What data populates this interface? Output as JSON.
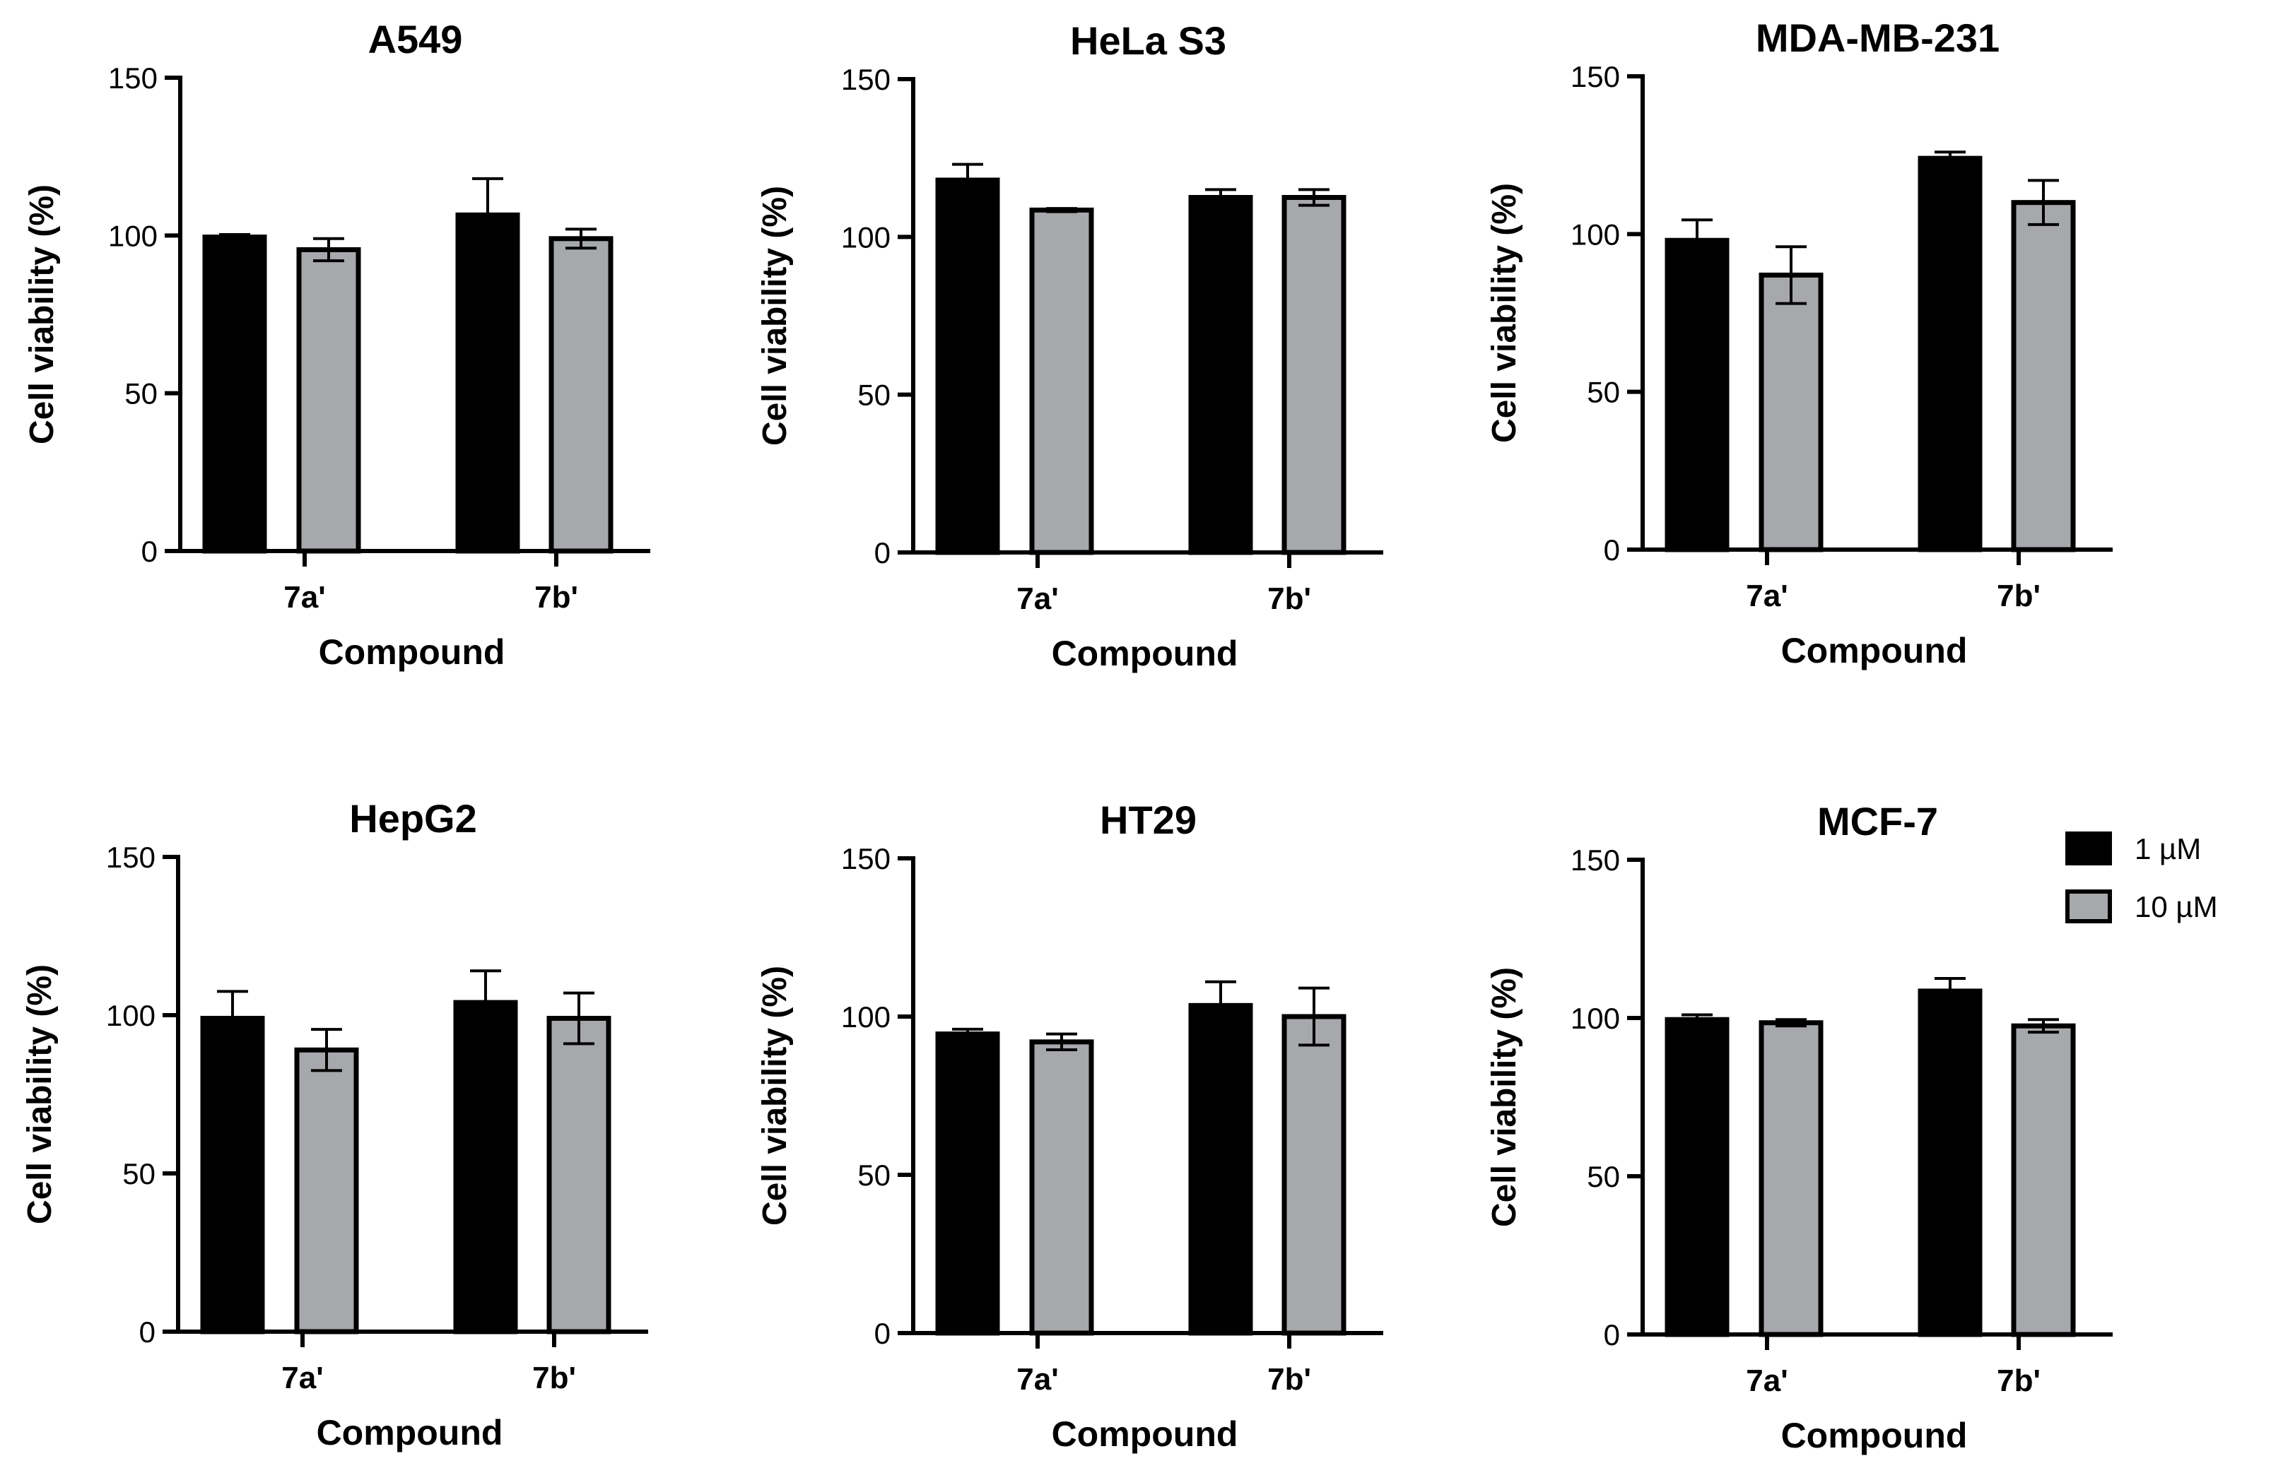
{
  "chart_data": [
    {
      "type": "bar",
      "title": "A549",
      "categories": [
        "7a'",
        "7b'"
      ],
      "xlabel": "Compound",
      "ylabel": "Cell viability (%)",
      "ylim": [
        0,
        150
      ],
      "yticks": [
        0,
        50,
        100,
        150
      ],
      "series": [
        {
          "name": "1 µM",
          "values": [
            99.5,
            106.5
          ],
          "errors": [
            0.8,
            11.5
          ]
        },
        {
          "name": "10 µM",
          "values": [
            95.5,
            99
          ],
          "errors": [
            3.5,
            3
          ]
        }
      ]
    },
    {
      "type": "bar",
      "title": "HeLa S3",
      "categories": [
        "7a'",
        "7b'"
      ],
      "xlabel": "Compound",
      "ylabel": "Cell viability (%)",
      "ylim": [
        0,
        150
      ],
      "yticks": [
        0,
        50,
        100,
        150
      ],
      "series": [
        {
          "name": "1 µM",
          "values": [
            118,
            112.5
          ],
          "errors": [
            5,
            2.5
          ]
        },
        {
          "name": "10 µM",
          "values": [
            108.5,
            112.5
          ],
          "errors": [
            0.5,
            2.5
          ]
        }
      ]
    },
    {
      "type": "bar",
      "title": "MDA-MB-231",
      "categories": [
        "7a'",
        "7b'"
      ],
      "xlabel": "Compound",
      "ylabel": "Cell viability (%)",
      "ylim": [
        0,
        150
      ],
      "yticks": [
        0,
        50,
        100,
        150
      ],
      "series": [
        {
          "name": "1 µM",
          "values": [
            98,
            124
          ],
          "errors": [
            6.5,
            2
          ]
        },
        {
          "name": "10 µM",
          "values": [
            87,
            110
          ],
          "errors": [
            9,
            7
          ]
        }
      ]
    },
    {
      "type": "bar",
      "title": "HepG2",
      "categories": [
        "7a'",
        "7b'"
      ],
      "xlabel": "Compound",
      "ylabel": "Cell viability (%)",
      "ylim": [
        0,
        150
      ],
      "yticks": [
        0,
        50,
        100,
        150
      ],
      "series": [
        {
          "name": "1 µM",
          "values": [
            99,
            104
          ],
          "errors": [
            8.5,
            10
          ]
        },
        {
          "name": "10 µM",
          "values": [
            89,
            99
          ],
          "errors": [
            6.5,
            8
          ]
        }
      ]
    },
    {
      "type": "bar",
      "title": "HT29",
      "categories": [
        "7a'",
        "7b'"
      ],
      "xlabel": "Compound",
      "ylabel": "Cell viability (%)",
      "ylim": [
        0,
        150
      ],
      "yticks": [
        0,
        50,
        100,
        150
      ],
      "series": [
        {
          "name": "1 µM",
          "values": [
            94.5,
            103.5
          ],
          "errors": [
            1.5,
            7.5
          ]
        },
        {
          "name": "10 µM",
          "values": [
            92,
            100
          ],
          "errors": [
            2.5,
            9
          ]
        }
      ]
    },
    {
      "type": "bar",
      "title": "MCF-7",
      "categories": [
        "7a'",
        "7b'"
      ],
      "xlabel": "Compound",
      "ylabel": "Cell viability (%)",
      "ylim": [
        0,
        150
      ],
      "yticks": [
        0,
        50,
        100,
        150
      ],
      "series": [
        {
          "name": "1 µM",
          "values": [
            99.5,
            108.5
          ],
          "errors": [
            1.5,
            4
          ]
        },
        {
          "name": "10 µM",
          "values": [
            98.5,
            97.5
          ],
          "errors": [
            1,
            2
          ]
        }
      ]
    }
  ],
  "legend": {
    "items": [
      {
        "label": "1 µM",
        "color": "#000000"
      },
      {
        "label": "10 µM",
        "color": "#a6a8ab"
      }
    ]
  },
  "colors": {
    "series": [
      "#000000",
      "#a6a8ab"
    ],
    "axis": "#000000"
  }
}
